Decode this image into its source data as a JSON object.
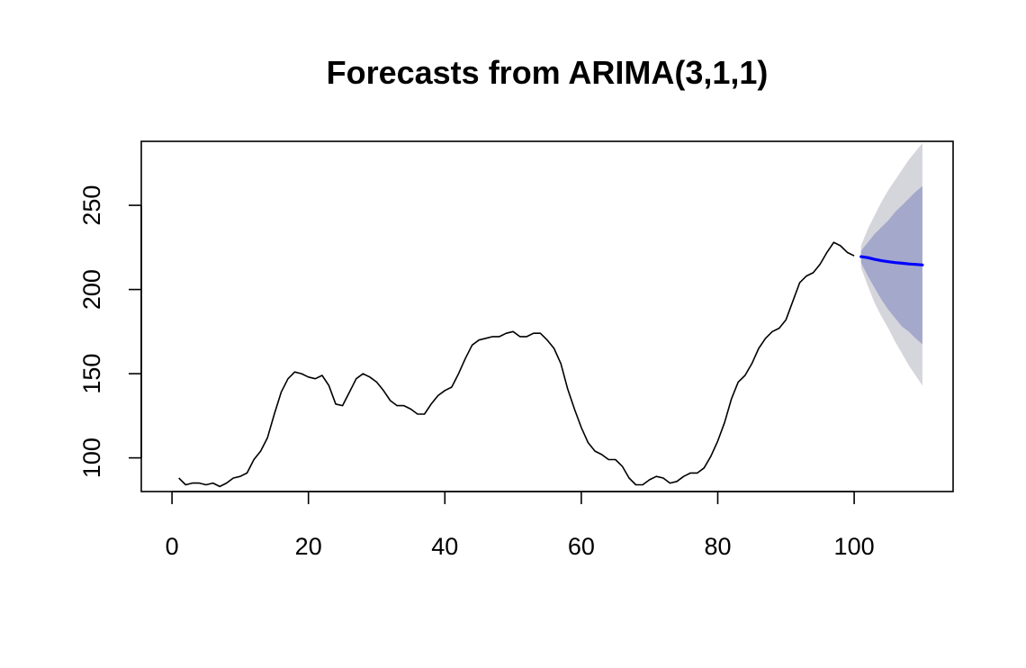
{
  "chart_data": {
    "type": "line",
    "title": "Forecasts from ARIMA(3,1,1)",
    "xlabel": "",
    "ylabel": "",
    "xlim": [
      -4.5,
      114.5
    ],
    "ylim": [
      80,
      288
    ],
    "x_ticks": [
      {
        "value": 0,
        "label": "0"
      },
      {
        "value": 20,
        "label": "20"
      },
      {
        "value": 40,
        "label": "40"
      },
      {
        "value": 60,
        "label": "60"
      },
      {
        "value": 80,
        "label": "80"
      },
      {
        "value": 100,
        "label": "100"
      }
    ],
    "y_ticks": [
      {
        "value": 100,
        "label": "100"
      },
      {
        "value": 150,
        "label": "150"
      },
      {
        "value": 200,
        "label": "200"
      },
      {
        "value": 250,
        "label": "250"
      }
    ],
    "grid": false,
    "colors": {
      "series": "#000000",
      "forecast": "#0000ff",
      "band80": "#a4a8cb",
      "band95": "#d5d5dc"
    },
    "series": [
      {
        "x": [
          1,
          2,
          3,
          4,
          5,
          6,
          7,
          8,
          9,
          10,
          11,
          12,
          13,
          14,
          15,
          16,
          17,
          18,
          19,
          20,
          21,
          22,
          23,
          24,
          25,
          26,
          27,
          28,
          29,
          30,
          31,
          32,
          33,
          34,
          35,
          36,
          37,
          38,
          39,
          40,
          41,
          42,
          43,
          44,
          45,
          46,
          47,
          48,
          49,
          50,
          51,
          52,
          53,
          54,
          55,
          56,
          57,
          58,
          59,
          60,
          61,
          62,
          63,
          64,
          65,
          66,
          67,
          68,
          69,
          70,
          71,
          72,
          73,
          74,
          75,
          76,
          77,
          78,
          79,
          80,
          81,
          82,
          83,
          84,
          85,
          86,
          87,
          88,
          89,
          90,
          91,
          92,
          93,
          94,
          95,
          96,
          97,
          98,
          99,
          100
        ],
        "values": [
          88,
          84,
          85,
          85,
          84,
          85,
          83,
          85,
          88,
          89,
          91,
          99,
          104,
          112,
          126,
          139,
          147,
          151,
          150,
          148,
          147,
          149,
          143,
          132,
          131,
          139,
          147,
          150,
          148,
          145,
          140,
          134,
          131,
          131,
          129,
          126,
          126,
          132,
          137,
          140,
          142,
          150,
          159,
          167,
          170,
          171,
          172,
          172,
          174,
          175,
          172,
          172,
          174,
          174,
          170,
          165,
          156,
          141,
          129,
          118,
          109,
          104,
          102,
          99,
          99,
          95,
          88,
          84,
          84,
          87,
          89,
          88,
          85,
          86,
          89,
          91,
          91,
          94,
          101,
          110,
          121,
          135,
          145,
          149,
          156,
          165,
          171,
          175,
          177,
          182,
          193,
          204,
          208,
          210,
          215,
          222,
          228,
          226,
          222,
          220
        ]
      }
    ],
    "forecast": {
      "x": [
        101,
        102,
        103,
        104,
        105,
        106,
        107,
        108,
        109,
        110
      ],
      "mean": [
        219.5,
        218.9,
        217.9,
        217.1,
        216.5,
        216.0,
        215.6,
        215.2,
        214.9,
        214.6
      ],
      "lo80": [
        216,
        208,
        201,
        194,
        188,
        183,
        178,
        175,
        171,
        167.5
      ],
      "hi80": [
        223,
        228,
        233,
        237,
        241,
        246,
        250,
        254,
        258,
        261.5
      ],
      "lo95": [
        213,
        202,
        192,
        184,
        177,
        169,
        162,
        155,
        149,
        143
      ],
      "hi95": [
        226,
        236,
        244,
        252,
        259,
        265,
        271,
        277,
        282,
        287
      ]
    }
  }
}
